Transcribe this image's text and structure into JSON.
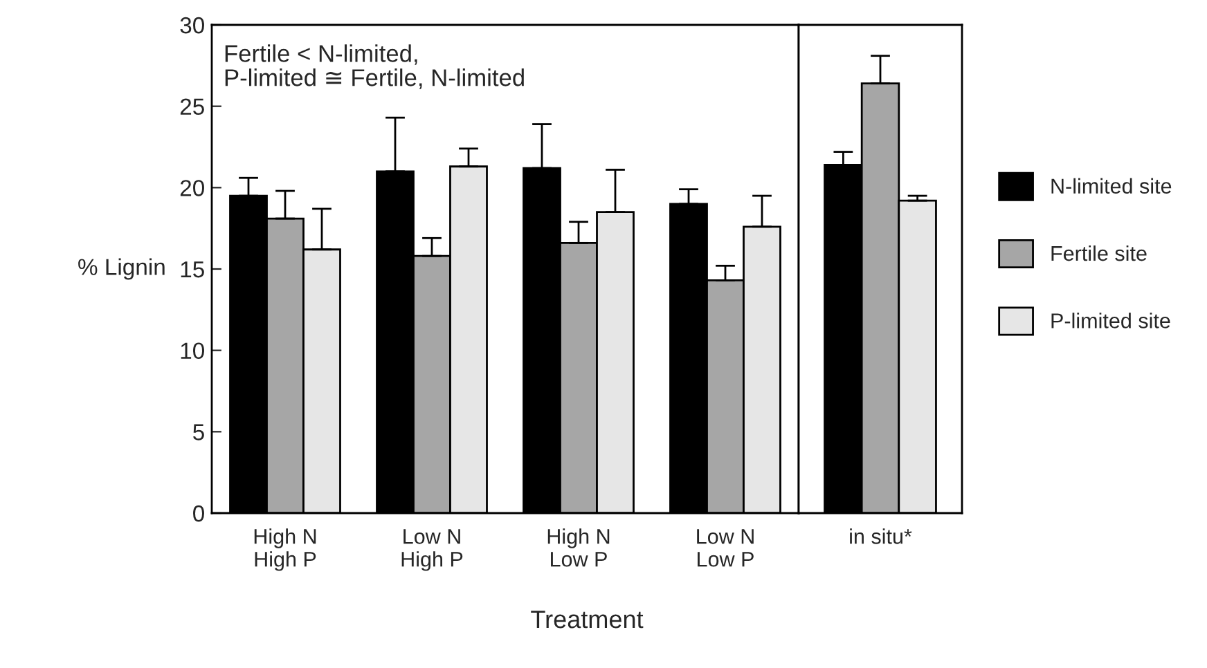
{
  "chart_data": [
    {
      "type": "bar",
      "ylabel": "% Lignin",
      "xlabel": "Treatment",
      "categories": [
        "High N\nHigh P",
        "Low N\nHigh P",
        "High N\nLow P",
        "Low N\nLow P"
      ],
      "ylim": [
        0,
        30
      ],
      "yticks": [
        0,
        5,
        10,
        15,
        20,
        25,
        30
      ],
      "annotations": [
        "Fertile < N-limited,\nP-limited ≅ Fertile, N-limited"
      ],
      "grid": false,
      "legend": "right",
      "series": [
        {
          "name": "N-limited site",
          "color": "#000000",
          "values": [
            19.5,
            21.0,
            21.2,
            19.0
          ],
          "errors": [
            1.1,
            3.3,
            2.7,
            0.9
          ]
        },
        {
          "name": "Fertile site",
          "color": "#a6a6a6",
          "values": [
            18.1,
            15.8,
            16.6,
            14.3
          ],
          "errors": [
            1.7,
            1.1,
            1.3,
            0.9
          ]
        },
        {
          "name": "P-limited site",
          "color": "#e6e6e6",
          "values": [
            16.2,
            21.3,
            18.5,
            17.6
          ],
          "errors": [
            2.5,
            1.1,
            2.6,
            1.9
          ]
        }
      ]
    },
    {
      "type": "bar",
      "categories": [
        "in situ*"
      ],
      "ylim": [
        0,
        30
      ],
      "yticks": [
        0,
        5,
        10,
        15,
        20,
        25,
        30
      ],
      "tick_labels": "x",
      "grid": false,
      "series": [
        {
          "color": "#000000",
          "values": [
            21.4
          ],
          "errors": [
            0.8
          ]
        },
        {
          "color": "#a6a6a6",
          "values": [
            26.4
          ],
          "errors": [
            1.7
          ]
        },
        {
          "color": "#e6e6e6",
          "values": [
            19.2
          ],
          "errors": [
            0.3
          ]
        }
      ]
    }
  ]
}
